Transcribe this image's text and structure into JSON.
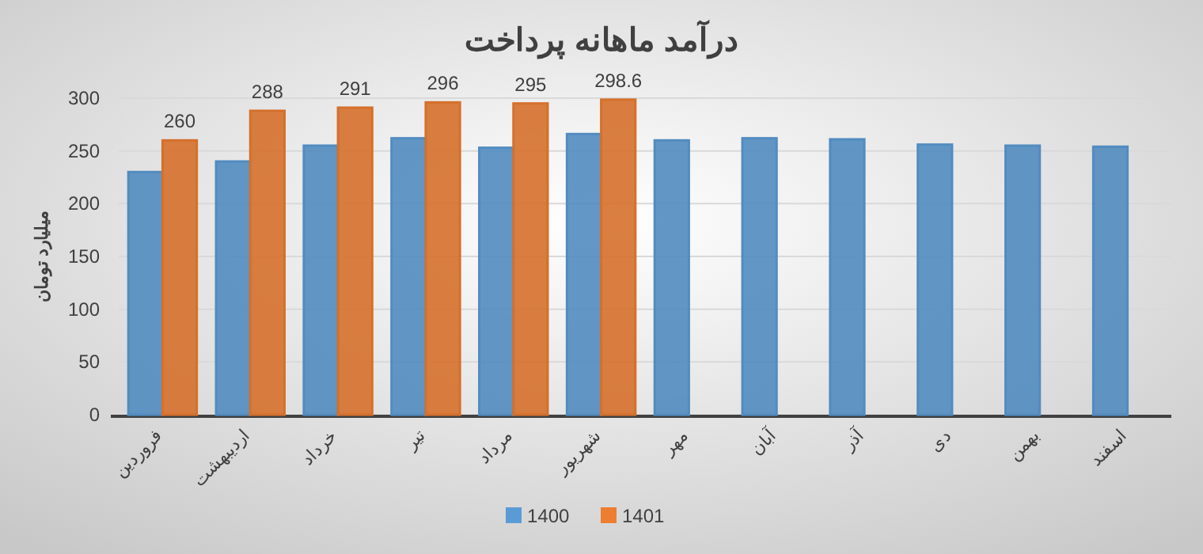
{
  "chart_data": {
    "type": "bar",
    "title": "درآمد ماهانه پرداخت",
    "ylabel": "میلیارد تومان",
    "categories": [
      "فروردین",
      "اردیبهشت",
      "خرداد",
      "تیر",
      "مرداد",
      "شهریور",
      "مهر",
      "آبان",
      "آذر",
      "دی",
      "بهمن",
      "اسفند"
    ],
    "series": [
      {
        "name": "1400",
        "color": "#5b9bd5",
        "values": [
          230,
          240,
          255,
          262,
          253,
          266,
          260,
          262,
          261,
          256,
          255,
          254
        ]
      },
      {
        "name": "1401",
        "color": "#ed7d31",
        "values": [
          260,
          288,
          291,
          296,
          295,
          298.6,
          null,
          null,
          null,
          null,
          null,
          null
        ],
        "value_labels": [
          "260",
          "288",
          "291",
          "296",
          "295",
          "298.6",
          null,
          null,
          null,
          null,
          null,
          null
        ]
      }
    ],
    "ylim": [
      0,
      300
    ],
    "yticks": [
      0,
      50,
      100,
      150,
      200,
      250,
      300
    ],
    "grid": "y",
    "legend": "bottom"
  }
}
